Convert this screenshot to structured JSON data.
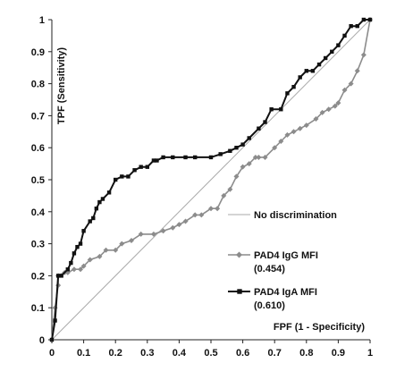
{
  "chart_data": {
    "type": "line",
    "xlabel": "FPF (1 - Specificity)",
    "ylabel": "TPF (Sensitivity)",
    "xlim": [
      0,
      1
    ],
    "ylim": [
      0,
      1
    ],
    "xticks": [
      "0",
      "0.1",
      "0.2",
      "0.3",
      "0.4",
      "0.5",
      "0.6",
      "0.7",
      "0.8",
      "0.9",
      "1"
    ],
    "yticks": [
      "0",
      "0.1",
      "0.2",
      "0.3",
      "0.4",
      "0.5",
      "0.6",
      "0.7",
      "0.8",
      "0.9",
      "1"
    ],
    "grid": false,
    "legend_position": "right",
    "reference_line": {
      "label": "No discrimination",
      "x": [
        0,
        1
      ],
      "y": [
        0,
        1
      ],
      "color": "#aaaaaa"
    },
    "series": [
      {
        "name": "PAD4 IgG MFI",
        "sub_label": "(0.454)",
        "color": "#8c8c8c",
        "marker": "diamond",
        "x": [
          0,
          0.01,
          0.02,
          0.02,
          0.04,
          0.05,
          0.07,
          0.09,
          0.1,
          0.12,
          0.15,
          0.17,
          0.2,
          0.22,
          0.25,
          0.28,
          0.32,
          0.35,
          0.38,
          0.4,
          0.42,
          0.45,
          0.47,
          0.5,
          0.52,
          0.54,
          0.56,
          0.58,
          0.6,
          0.62,
          0.64,
          0.65,
          0.67,
          0.7,
          0.72,
          0.74,
          0.76,
          0.78,
          0.8,
          0.83,
          0.85,
          0.87,
          0.89,
          0.9,
          0.92,
          0.94,
          0.96,
          0.98,
          1.0
        ],
        "y": [
          0,
          0.1,
          0.17,
          0.2,
          0.21,
          0.21,
          0.22,
          0.22,
          0.23,
          0.25,
          0.26,
          0.28,
          0.28,
          0.3,
          0.31,
          0.33,
          0.33,
          0.34,
          0.35,
          0.36,
          0.37,
          0.39,
          0.39,
          0.41,
          0.41,
          0.45,
          0.47,
          0.51,
          0.54,
          0.55,
          0.57,
          0.57,
          0.57,
          0.6,
          0.62,
          0.64,
          0.65,
          0.66,
          0.67,
          0.69,
          0.71,
          0.72,
          0.73,
          0.74,
          0.78,
          0.8,
          0.84,
          0.89,
          1.0
        ]
      },
      {
        "name": "PAD4 IgA MFI",
        "sub_label": "(0.610)",
        "color": "#111111",
        "marker": "square",
        "x": [
          0,
          0.01,
          0.02,
          0.03,
          0.05,
          0.06,
          0.07,
          0.08,
          0.09,
          0.1,
          0.12,
          0.13,
          0.14,
          0.15,
          0.16,
          0.18,
          0.2,
          0.22,
          0.24,
          0.26,
          0.28,
          0.3,
          0.32,
          0.33,
          0.35,
          0.38,
          0.42,
          0.45,
          0.5,
          0.53,
          0.56,
          0.58,
          0.6,
          0.62,
          0.65,
          0.67,
          0.69,
          0.72,
          0.74,
          0.76,
          0.78,
          0.8,
          0.82,
          0.84,
          0.86,
          0.88,
          0.9,
          0.92,
          0.94,
          0.96,
          0.98,
          1.0
        ],
        "y": [
          0,
          0.06,
          0.2,
          0.2,
          0.22,
          0.24,
          0.27,
          0.29,
          0.3,
          0.34,
          0.37,
          0.38,
          0.41,
          0.43,
          0.44,
          0.46,
          0.5,
          0.51,
          0.51,
          0.53,
          0.54,
          0.54,
          0.56,
          0.56,
          0.57,
          0.57,
          0.57,
          0.57,
          0.57,
          0.58,
          0.59,
          0.6,
          0.61,
          0.63,
          0.66,
          0.68,
          0.72,
          0.72,
          0.77,
          0.79,
          0.82,
          0.84,
          0.84,
          0.86,
          0.88,
          0.9,
          0.92,
          0.95,
          0.98,
          0.98,
          1.0,
          1.0
        ]
      }
    ]
  }
}
